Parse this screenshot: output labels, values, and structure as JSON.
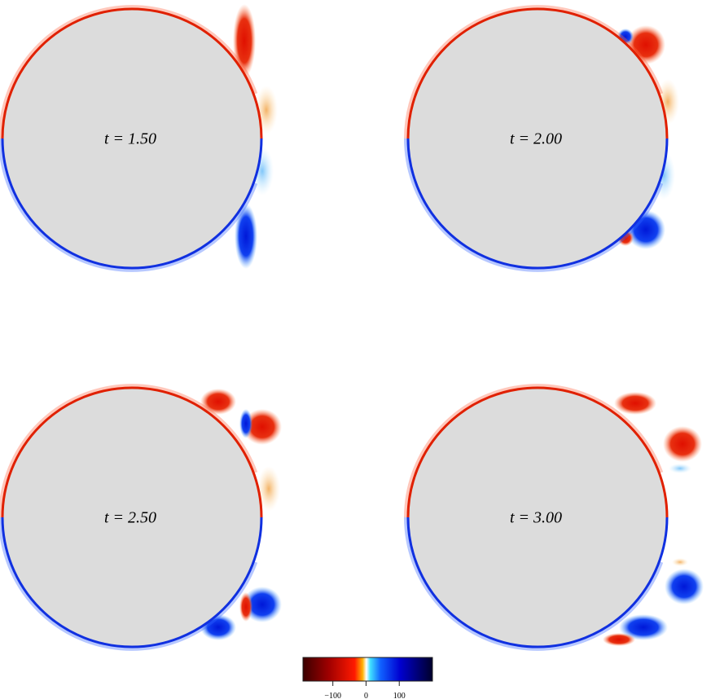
{
  "panels": [
    {
      "label": "t = 1.50"
    },
    {
      "label": "t = 2.00"
    },
    {
      "label": "t = 2.50"
    },
    {
      "label": "t = 3.00"
    }
  ],
  "colorbar": {
    "lim": [
      -190,
      200
    ],
    "ticks": [
      {
        "value": -100,
        "label": "−100"
      },
      0,
      100
    ]
  }
}
